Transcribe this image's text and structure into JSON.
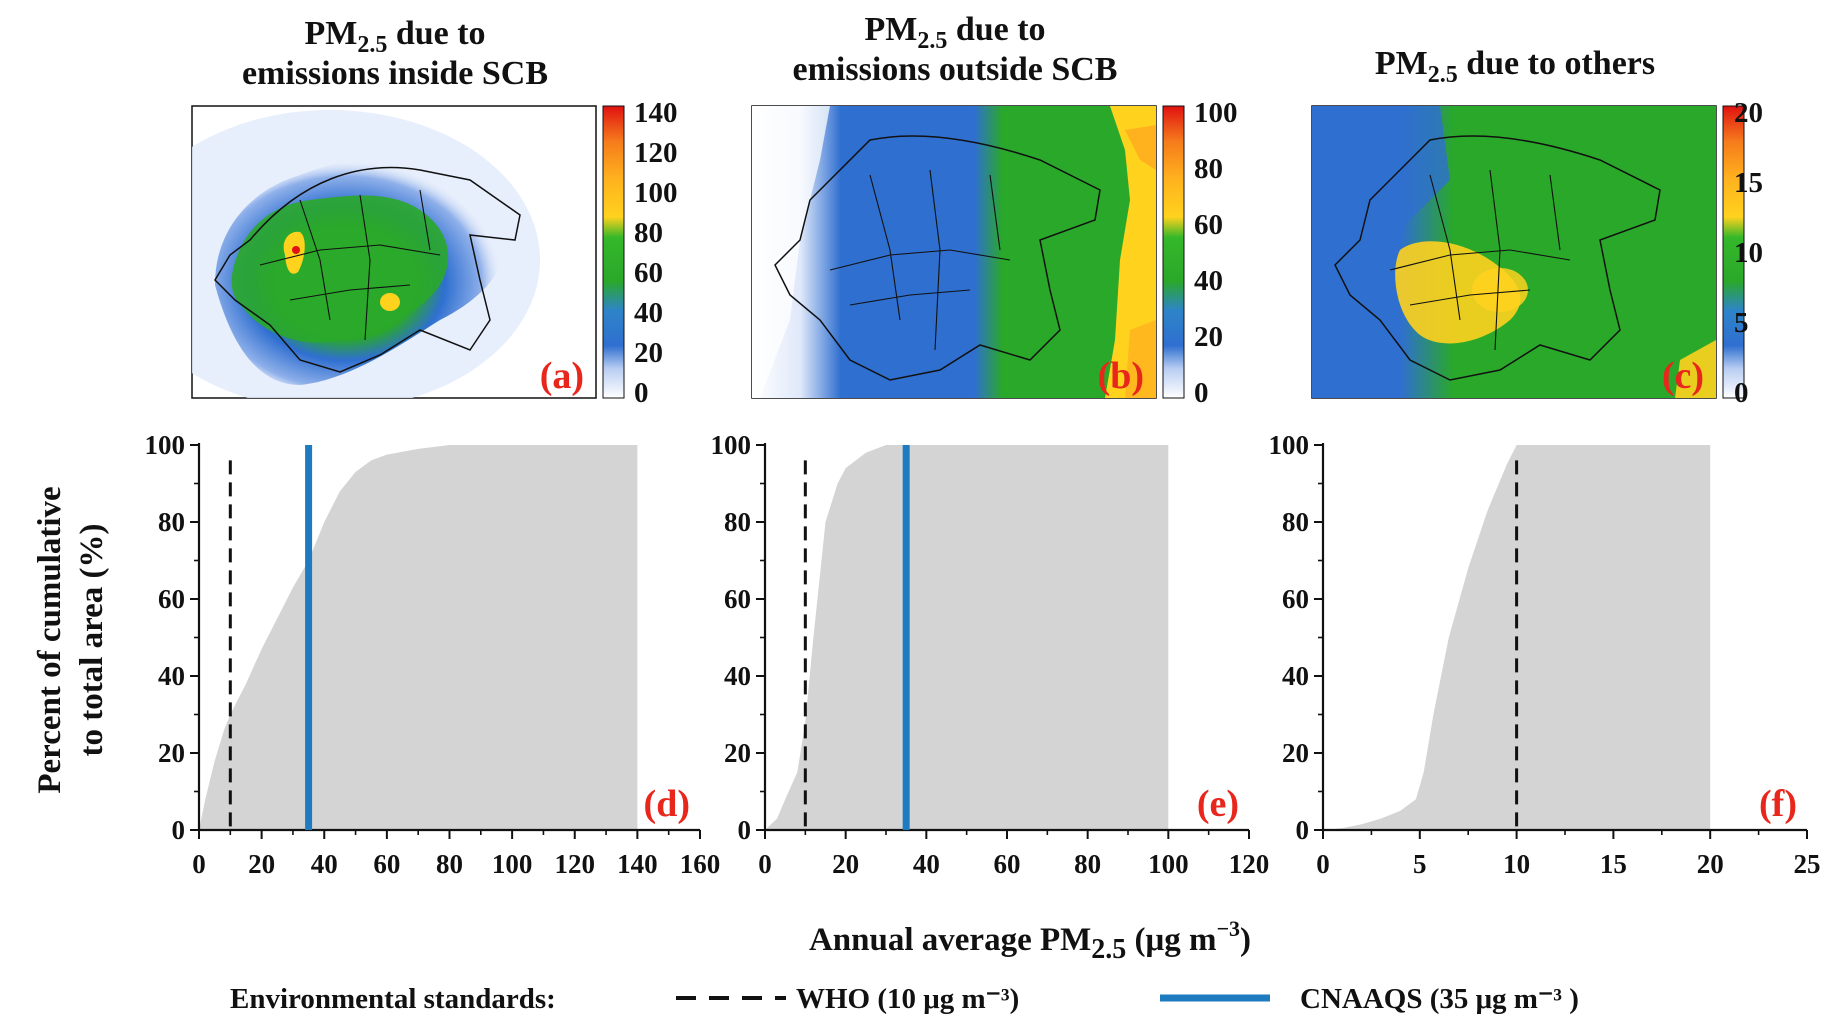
{
  "colors": {
    "fill_area": "#d4d4d4",
    "who_line": "#111111",
    "cnaaqs_line": "#1f7bbf",
    "panel_label": "#e8261c",
    "colorbar": [
      "#ffffff",
      "#2f6fd0",
      "#2aa82a",
      "#ffd21e",
      "#f57a1c",
      "#e01212"
    ]
  },
  "maps": [
    {
      "title_line1": "PM",
      "title_sub": "2.5",
      "title_rest": " due to",
      "title_line2": "emissions  inside  SCB",
      "label": "(a)",
      "colorbar_ticks": [
        "140",
        "120",
        "100",
        "80",
        "60",
        "40",
        "20",
        "0"
      ],
      "icon": "pm25-inside-map"
    },
    {
      "title_line1": "PM",
      "title_sub": "2.5",
      "title_rest": " due to",
      "title_line2": "emissions  outside  SCB",
      "label": "(b)",
      "colorbar_ticks": [
        "100",
        "80",
        "60",
        "40",
        "20",
        "0"
      ],
      "icon": "pm25-outside-map"
    },
    {
      "title_line1": "PM",
      "title_sub": "2.5",
      "title_rest": " due to others",
      "title_line2": "",
      "label": "(c)",
      "colorbar_ticks": [
        "20",
        "15",
        "10",
        "5",
        "0"
      ],
      "icon": "pm25-others-map"
    }
  ],
  "y_axis_label_line1": "Percent of cumulative",
  "y_axis_label_line2": "to total area (%)",
  "x_axis_label": "Annual average PM",
  "x_axis_label_sub": "2.5",
  "x_axis_label_unit": " (μg m",
  "x_axis_label_sup": "−3",
  "x_axis_label_end": ")",
  "legend": {
    "prefix": "Environmental standards:",
    "who": "WHO (10 μg m⁻³)",
    "cnaaqs": "CNAAQS (35 μg m⁻³ )"
  },
  "chart_data": [
    {
      "type": "area",
      "label": "(d)",
      "xlim": [
        0,
        160
      ],
      "ylim": [
        0,
        100
      ],
      "xticks": [
        0,
        20,
        40,
        60,
        80,
        100,
        120,
        140,
        160
      ],
      "yticks": [
        0,
        20,
        40,
        60,
        80,
        100
      ],
      "x": [
        0,
        2,
        5,
        8,
        10,
        15,
        20,
        25,
        30,
        35,
        40,
        45,
        50,
        55,
        60,
        70,
        80,
        100,
        140
      ],
      "y": [
        0,
        8,
        18,
        26,
        30,
        38,
        47,
        55,
        63,
        70,
        80,
        88,
        93,
        96,
        97.5,
        99,
        100,
        100,
        100
      ],
      "who": 10,
      "cnaaqs": 35
    },
    {
      "type": "area",
      "label": "(e)",
      "xlim": [
        0,
        120
      ],
      "ylim": [
        0,
        100
      ],
      "xticks": [
        0,
        20,
        40,
        60,
        80,
        100,
        120
      ],
      "yticks": [
        0,
        20,
        40,
        60,
        80,
        100
      ],
      "x": [
        0,
        3,
        5,
        8,
        10,
        12,
        15,
        18,
        20,
        25,
        30,
        35,
        100
      ],
      "y": [
        0,
        3,
        8,
        15,
        28,
        50,
        80,
        90,
        94,
        98,
        100,
        100,
        100
      ],
      "who": 10,
      "cnaaqs": 35
    },
    {
      "type": "area",
      "label": "(f)",
      "xlim": [
        0,
        25
      ],
      "ylim": [
        0,
        100
      ],
      "xticks": [
        0,
        5,
        10,
        15,
        20,
        25
      ],
      "yticks": [
        0,
        20,
        40,
        60,
        80,
        100
      ],
      "x": [
        0,
        1,
        2,
        3,
        4,
        4.8,
        5.2,
        5.7,
        6.5,
        7.5,
        8.5,
        9.5,
        10,
        20
      ],
      "y": [
        0,
        0.5,
        1.5,
        3,
        5,
        8,
        15,
        30,
        50,
        68,
        83,
        95,
        100,
        100
      ],
      "who": 10
    }
  ]
}
